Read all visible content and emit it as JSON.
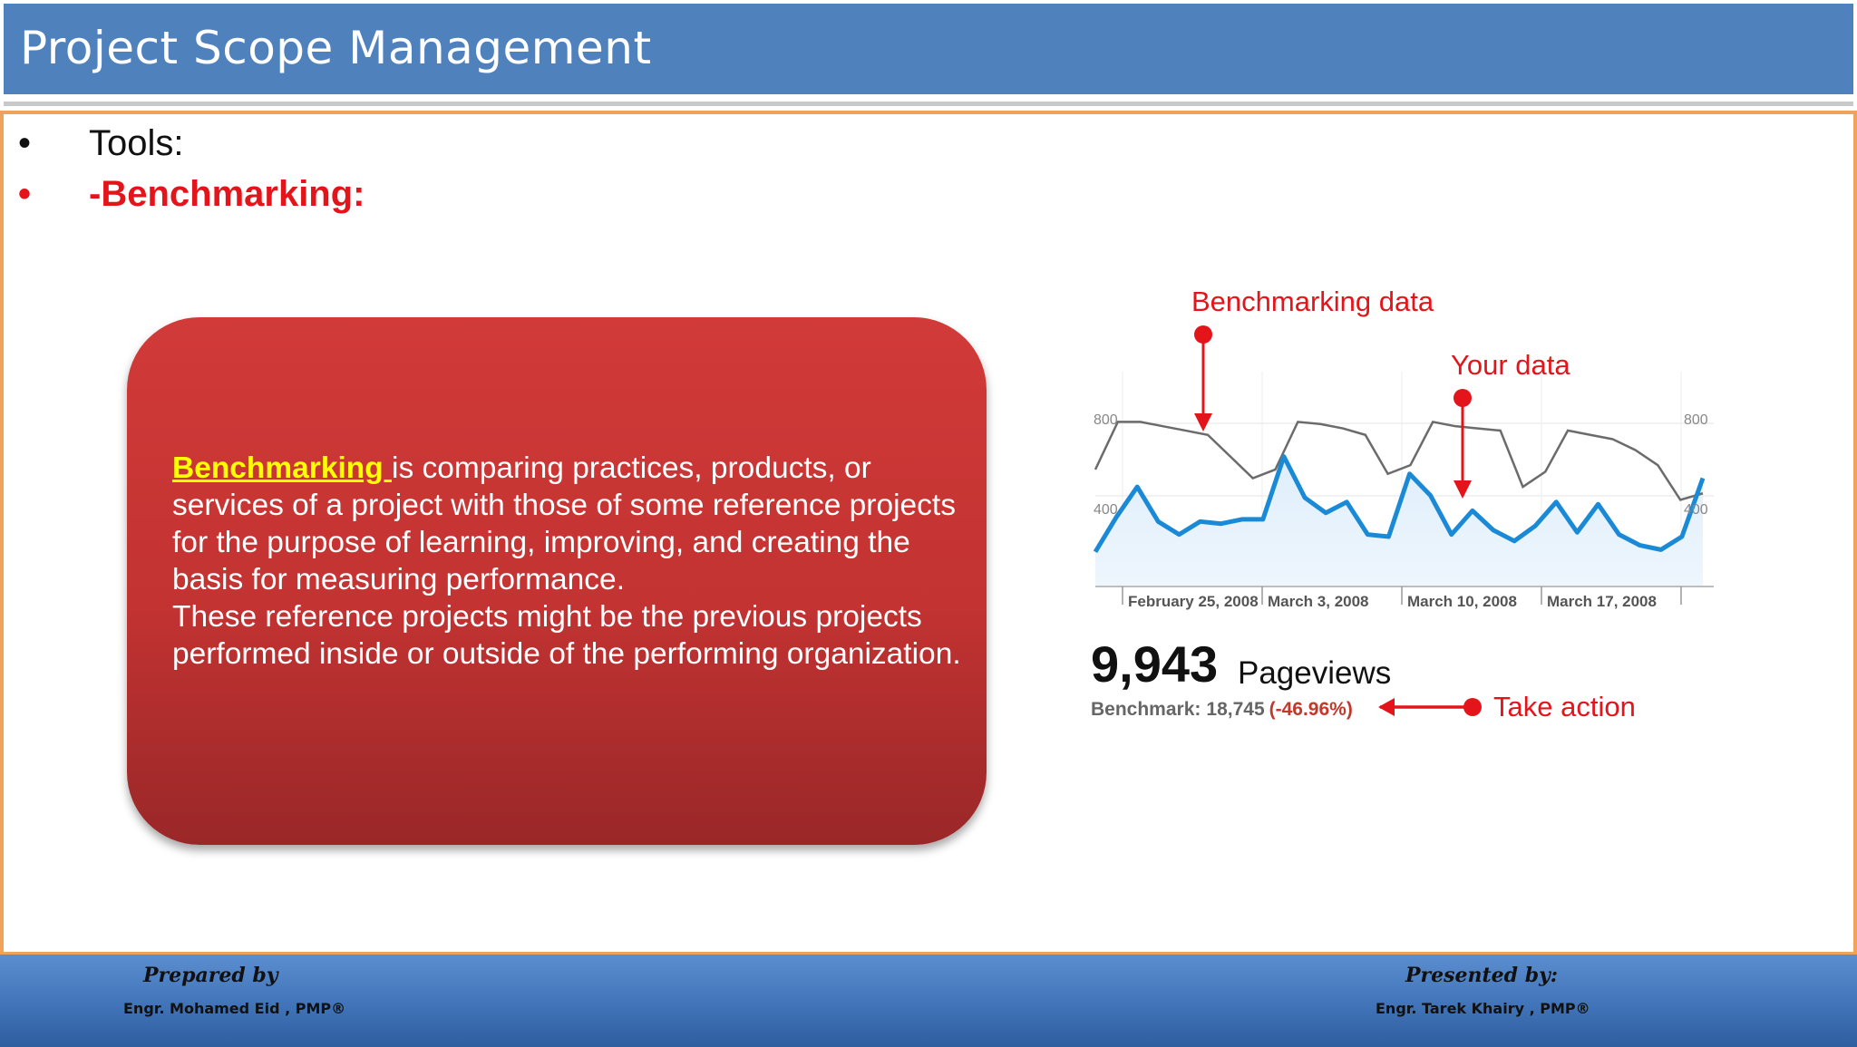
{
  "slide": {
    "title": "Project Scope Management",
    "bullets": [
      {
        "marker": "•",
        "text": "Tools:",
        "color": "#111111"
      },
      {
        "marker": "•",
        "text": "-Benchmarking:",
        "color": "#e3151b"
      }
    ]
  },
  "definition_box": {
    "keyword": "Benchmarking ",
    "text": "is comparing practices, products, or services of a project with those of some reference projects for the purpose of learning, improving, and creating the basis for measuring performance.",
    "text2": "These reference projects might be the previous projects performed inside or outside of the performing organization."
  },
  "chart_data": {
    "type": "line",
    "annotations": {
      "benchmark": "Benchmarking data",
      "yours": "Your data",
      "action": "Take action"
    },
    "y_ticks": [
      "800",
      "400"
    ],
    "y_ticks_right": [
      "800",
      "400"
    ],
    "ylim": [
      0,
      950
    ],
    "x_tick_labels": [
      "February 25, 2008",
      "March 3, 2008",
      "March 10, 2008",
      "March 17, 2008"
    ],
    "series": [
      {
        "values": [
          540,
          760,
          760,
          740,
          720,
          700,
          600,
          500,
          540,
          760,
          750,
          730,
          700,
          520,
          560,
          760,
          740,
          730,
          720,
          460,
          530,
          720,
          700,
          680,
          630,
          560,
          400,
          430
        ]
      },
      {
        "values": [
          160,
          320,
          460,
          300,
          240,
          300,
          290,
          310,
          310,
          600,
          410,
          340,
          390,
          240,
          230,
          520,
          420,
          240,
          350,
          260,
          210,
          280,
          390,
          250,
          380,
          240,
          190,
          170,
          230,
          500
        ]
      }
    ],
    "stats": {
      "value": "9,943",
      "label": "Pageviews",
      "benchmark_label": "Benchmark:",
      "benchmark_value": "18,745",
      "change": "(-46.96%)"
    }
  },
  "footer": {
    "prepared_label": "Prepared by",
    "prepared_name": "Engr. Mohamed Eid , PMP®",
    "presented_label": "Presented by:",
    "presented_name": "Engr. Tarek Khairy , PMP®"
  }
}
